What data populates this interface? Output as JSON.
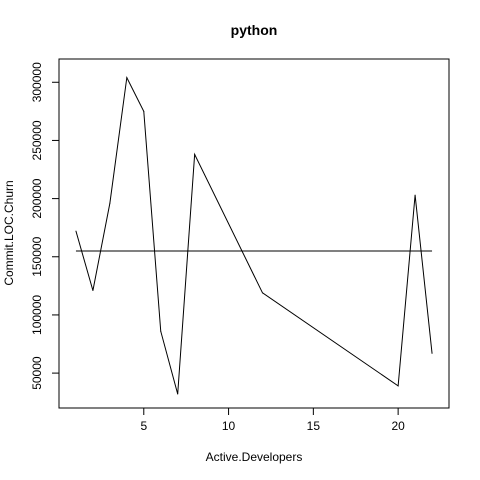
{
  "chart_data": {
    "type": "line",
    "title": "python",
    "xlabel": "Active.Developers",
    "ylabel": "Commit.LOC.Churn",
    "xlim": [
      0,
      23
    ],
    "ylim": [
      20000,
      320000
    ],
    "x_ticks": [
      5,
      10,
      15,
      20
    ],
    "y_ticks": [
      50000,
      100000,
      150000,
      200000,
      250000,
      300000
    ],
    "x_tick_labels": [
      "5",
      "10",
      "15",
      "20"
    ],
    "y_tick_labels": [
      "50000",
      "100000",
      "150000",
      "200000",
      "250000",
      "300000"
    ],
    "x": [
      1,
      2,
      3,
      4,
      5,
      6,
      7,
      8,
      12,
      20,
      21,
      22
    ],
    "values": [
      172000,
      121000,
      196000,
      304000,
      275000,
      86000,
      32000,
      238000,
      119000,
      39000,
      203000,
      67000
    ],
    "reference_line": {
      "y": 155000,
      "x_range": [
        1,
        22
      ]
    },
    "grid": false,
    "legend": "none"
  }
}
